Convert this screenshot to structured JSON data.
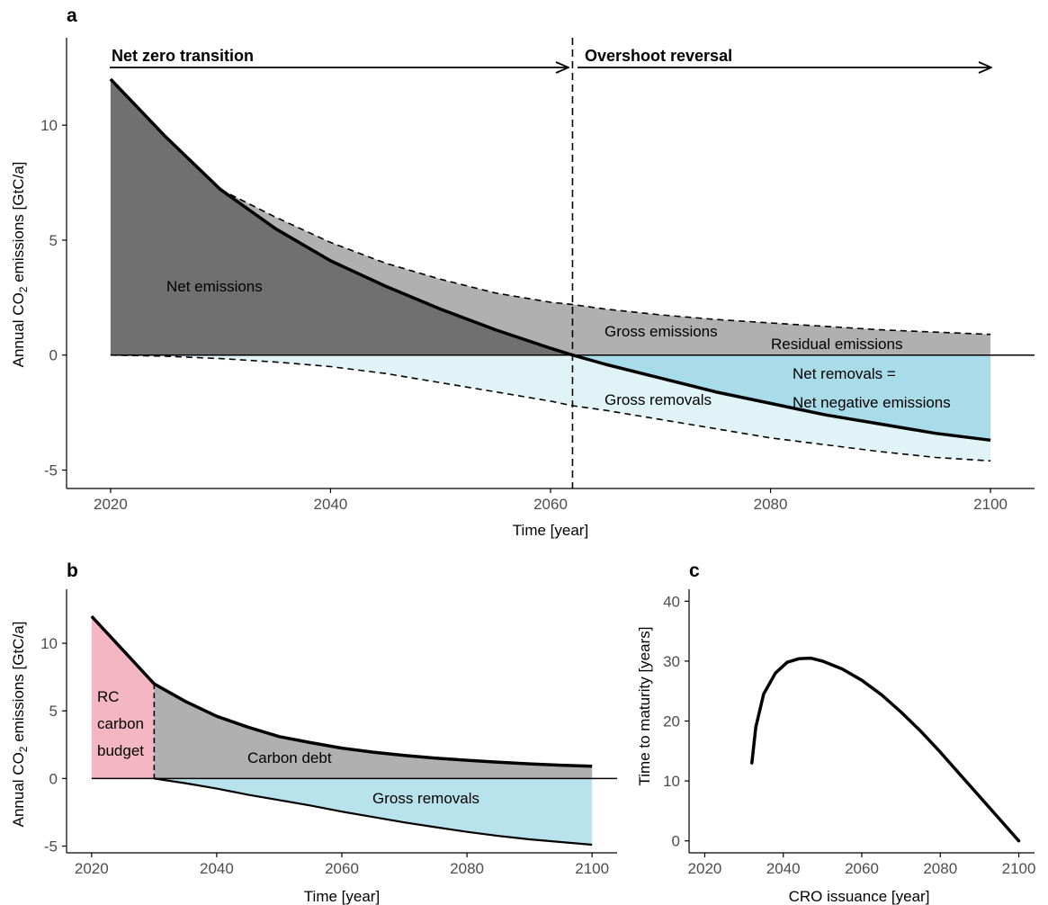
{
  "chart_data": [
    {
      "panel": "a",
      "type": "area",
      "xlabel": "Time [year]",
      "ylabel": "Annual CO2 emissions [GtC/a]",
      "xticks": [
        2020,
        2040,
        2060,
        2080,
        2100
      ],
      "yticks": [
        -5,
        0,
        5,
        10
      ],
      "xlim": [
        2016,
        2104
      ],
      "ylim": [
        -5.8,
        13.8
      ],
      "grid": false,
      "x": [
        2020,
        2025,
        2030,
        2035,
        2040,
        2045,
        2050,
        2055,
        2060,
        2062,
        2065,
        2070,
        2075,
        2080,
        2085,
        2090,
        2095,
        2100
      ],
      "series": [
        {
          "key": "net",
          "values": [
            12.0,
            9.5,
            7.2,
            5.5,
            4.1,
            3.0,
            2.0,
            1.1,
            0.3,
            0.0,
            -0.4,
            -1.0,
            -1.6,
            -2.1,
            -2.6,
            -3.0,
            -3.4,
            -3.7
          ]
        },
        {
          "key": "gross_emissions",
          "values": [
            12.0,
            9.5,
            7.2,
            6.0,
            4.9,
            4.0,
            3.3,
            2.7,
            2.3,
            2.2,
            2.0,
            1.75,
            1.55,
            1.4,
            1.25,
            1.1,
            1.0,
            0.9
          ]
        },
        {
          "key": "gross_removals",
          "values": [
            0.0,
            -0.05,
            -0.15,
            -0.3,
            -0.5,
            -0.8,
            -1.2,
            -1.6,
            -2.0,
            -2.2,
            -2.4,
            -2.8,
            -3.2,
            -3.6,
            -3.9,
            -4.2,
            -4.45,
            -4.6
          ]
        }
      ],
      "vline_x": 2062,
      "phases": [
        "Net zero transition",
        "Overshoot reversal"
      ],
      "annotations": [
        "Net emissions",
        "Gross emissions",
        "Residual emissions",
        "Net removals =",
        "Net negative emissions",
        "Gross removals"
      ],
      "colors": {
        "net_emissions": "#707070",
        "gross_emissions": "#b0b0b0",
        "gross_removals": "#e0f4f8",
        "net_removals": "#a9dce9"
      }
    },
    {
      "panel": "b",
      "type": "area",
      "xlabel": "Time [year]",
      "ylabel": "Annual CO2 emissions [GtC/a]",
      "xticks": [
        2020,
        2040,
        2060,
        2080,
        2100
      ],
      "yticks": [
        -5,
        0,
        5,
        10
      ],
      "xlim": [
        2016,
        2104
      ],
      "ylim": [
        -5.5,
        14.0
      ],
      "grid": false,
      "x": [
        2020,
        2025,
        2030,
        2035,
        2040,
        2045,
        2050,
        2055,
        2060,
        2065,
        2070,
        2075,
        2080,
        2085,
        2090,
        2095,
        2100
      ],
      "series": [
        {
          "key": "gross_emissions",
          "values": [
            12.0,
            9.5,
            7.0,
            5.7,
            4.6,
            3.8,
            3.1,
            2.65,
            2.25,
            1.95,
            1.7,
            1.5,
            1.35,
            1.2,
            1.08,
            0.98,
            0.9
          ]
        },
        {
          "key": "gross_removals",
          "values": [
            0.0,
            0.0,
            0.0,
            -0.35,
            -0.75,
            -1.2,
            -1.6,
            -2.0,
            -2.45,
            -2.85,
            -3.25,
            -3.6,
            -3.95,
            -4.25,
            -4.5,
            -4.7,
            -4.9
          ]
        }
      ],
      "vline_x": 2030,
      "annotations": [
        "RC",
        "carbon",
        "budget",
        "Carbon debt",
        "Gross removals"
      ],
      "colors": {
        "rc_carbon_budget": "#f4b6c2",
        "carbon_debt": "#b0b0b0",
        "gross_removals": "#b8e2ec"
      }
    },
    {
      "panel": "c",
      "type": "line",
      "xlabel": "CRO issuance [year]",
      "ylabel": "Time to maturity [years]",
      "xticks": [
        2020,
        2040,
        2060,
        2080,
        2100
      ],
      "yticks": [
        0,
        10,
        20,
        30,
        40
      ],
      "xlim": [
        2016,
        2104
      ],
      "ylim": [
        -2,
        42
      ],
      "grid": false,
      "x": [
        2032,
        2033,
        2035,
        2038,
        2041,
        2044,
        2047,
        2050,
        2055,
        2060,
        2065,
        2070,
        2075,
        2080,
        2085,
        2090,
        2095,
        2100
      ],
      "values": [
        13,
        19,
        24.5,
        28,
        29.8,
        30.4,
        30.5,
        30.0,
        28.7,
        26.8,
        24.4,
        21.5,
        18.3,
        14.8,
        11.1,
        7.4,
        3.7,
        0
      ]
    }
  ]
}
